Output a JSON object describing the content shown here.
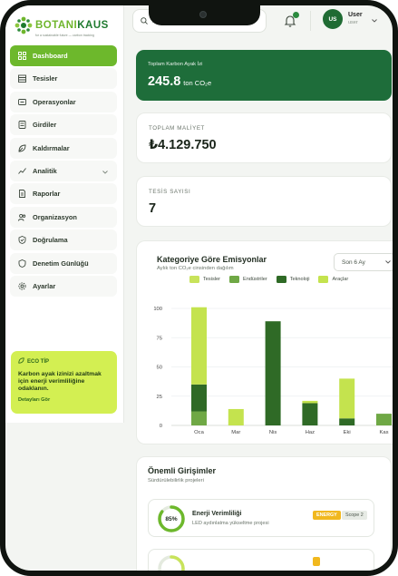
{
  "brand": {
    "name_part1": "BOTANI",
    "name_part2": "KAUS",
    "tagline": "for a sustainable future — carbon tracking"
  },
  "search": {
    "placeholder": "Ara tesisler, girdiler..."
  },
  "notifications": {
    "has_unread": true
  },
  "user": {
    "initials": "US",
    "name": "User",
    "role": "user"
  },
  "sidebar": {
    "items": [
      {
        "label": "Dashboard",
        "icon": "grid-icon",
        "active": true
      },
      {
        "label": "Tesisler",
        "icon": "building-icon"
      },
      {
        "label": "Operasyonlar",
        "icon": "gears-icon"
      },
      {
        "label": "Girdiler",
        "icon": "input-icon"
      },
      {
        "label": "Kaldırmalar",
        "icon": "leaf-icon"
      },
      {
        "label": "Analitik",
        "icon": "chart-icon",
        "expandable": true
      },
      {
        "label": "Raporlar",
        "icon": "document-icon"
      },
      {
        "label": "Organizasyon",
        "icon": "users-icon"
      },
      {
        "label": "Doğrulama",
        "icon": "shield-check-icon"
      },
      {
        "label": "Denetim Günlüğü",
        "icon": "shield-icon"
      },
      {
        "label": "Ayarlar",
        "icon": "settings-icon"
      }
    ]
  },
  "eco_tip": {
    "title": "ECO TİP",
    "text": "Karbon ayak izinizi azaltmak için enerji verimliliğine odaklanın.",
    "link": "Detayları Gör"
  },
  "kpis": {
    "carbon": {
      "label": "Toplam Karbon Ayak İzi",
      "value": "245.8",
      "unit": "ton CO₂e"
    },
    "cost": {
      "label": "TOPLAM MALİYET",
      "value": "₺4.129.750"
    },
    "facilities": {
      "label": "TESİS SAYISI",
      "value": "7"
    }
  },
  "chart": {
    "title": "Kategoriye Göre Emisyonlar",
    "subtitle": "Aylık ton CO₂e cinsinden dağılım",
    "period": "Son 6 Ay"
  },
  "chart_data": {
    "type": "bar",
    "stacked": true,
    "categories": [
      "Oca",
      "Mar",
      "Nis",
      "Haz",
      "Eki",
      "Kas"
    ],
    "ylim": [
      0,
      100
    ],
    "yticks": [
      0,
      25,
      50,
      75,
      100
    ],
    "grid": true,
    "legend_position": "top",
    "series": [
      {
        "name": "Tesisler",
        "color": "#c8e35b",
        "values": [
          0,
          0,
          0,
          0,
          0,
          0
        ]
      },
      {
        "name": "Endüstriler",
        "color": "#6fa845",
        "values": [
          12,
          0,
          0,
          0,
          0,
          10
        ]
      },
      {
        "name": "Teknoloji",
        "color": "#2f6a26",
        "values": [
          23,
          0,
          89,
          19,
          6,
          0
        ]
      },
      {
        "name": "Araçlar",
        "color": "#c4e34e",
        "values": [
          66,
          14,
          0,
          2,
          34,
          0
        ]
      }
    ]
  },
  "initiatives": {
    "title": "Önemli Girişimler",
    "subtitle": "Sürdürülebilirlik projeleri",
    "items": [
      {
        "progress_label": "85%",
        "progress": 0.85,
        "name": "Enerji Verimliliği",
        "desc": "LED aydınlatma yükseltme projesi",
        "tag": "ENERGY",
        "scope": "Scope 2"
      },
      {
        "progress": 0.6
      }
    ]
  }
}
